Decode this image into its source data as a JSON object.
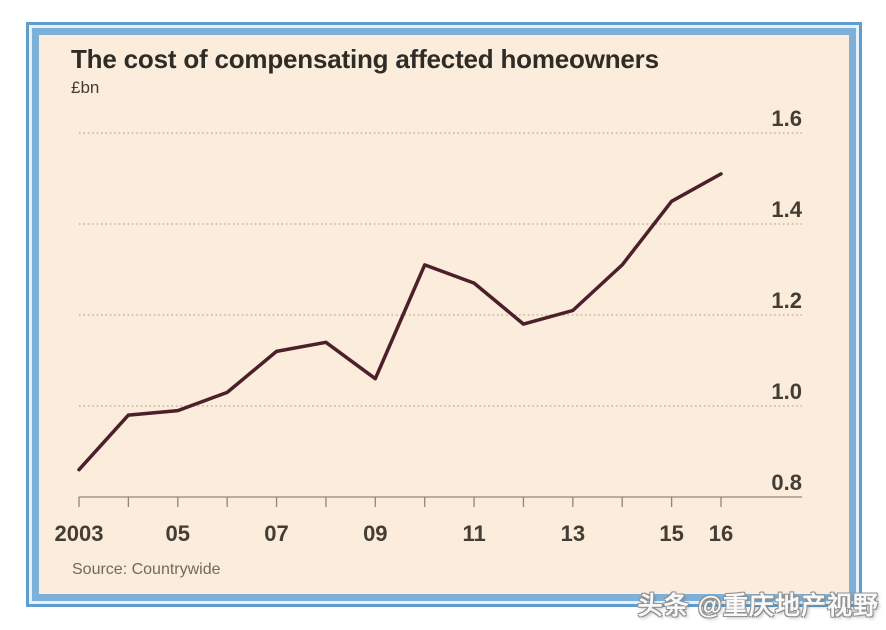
{
  "header": {
    "title": "The cost of compensating affected homeowners",
    "unit": "£bn"
  },
  "footer": {
    "source": "Source: Countrywide"
  },
  "watermark": {
    "text": "头条 @重庆地产视野"
  },
  "theme": {
    "frame_blue_outer": "#5f9dcc",
    "frame_blue_inner": "#7db1da",
    "frame_gap": "#e6f0f8",
    "panel_bg": "#fbecdb",
    "title_color": "#2f2b26",
    "label_color": "#433d34",
    "muted_color": "#6f6a60",
    "grid_color": "#bca997",
    "axis_color": "#8f8779",
    "watermark_outline": "#909090"
  },
  "chart_data": {
    "type": "line",
    "title": "The cost of compensating affected homeowners",
    "ylabel": "£bn",
    "xlabel": "",
    "source": "Source: Countrywide",
    "x": [
      2003,
      2004,
      2005,
      2006,
      2007,
      2008,
      2009,
      2010,
      2011,
      2012,
      2013,
      2014,
      2015,
      2016
    ],
    "x_tick_labels": [
      {
        "year": 2003,
        "label": "2003"
      },
      {
        "year": 2005,
        "label": "05"
      },
      {
        "year": 2007,
        "label": "07"
      },
      {
        "year": 2009,
        "label": "09"
      },
      {
        "year": 2011,
        "label": "11"
      },
      {
        "year": 2013,
        "label": "13"
      },
      {
        "year": 2015,
        "label": "15"
      },
      {
        "year": 2016,
        "label": "16"
      }
    ],
    "series": [
      {
        "name": "Cost of compensating affected homeowners (£bn)",
        "values": [
          0.86,
          0.98,
          0.99,
          1.03,
          1.12,
          1.14,
          1.06,
          1.31,
          1.27,
          1.18,
          1.21,
          1.31,
          1.45,
          1.51
        ]
      }
    ],
    "ylim": [
      0.8,
      1.6
    ],
    "y_ticks": [
      0.8,
      1.0,
      1.2,
      1.4,
      1.6
    ],
    "grid": "horizontal-dotted",
    "legend": "none",
    "line_color": "#4c1f2a"
  }
}
